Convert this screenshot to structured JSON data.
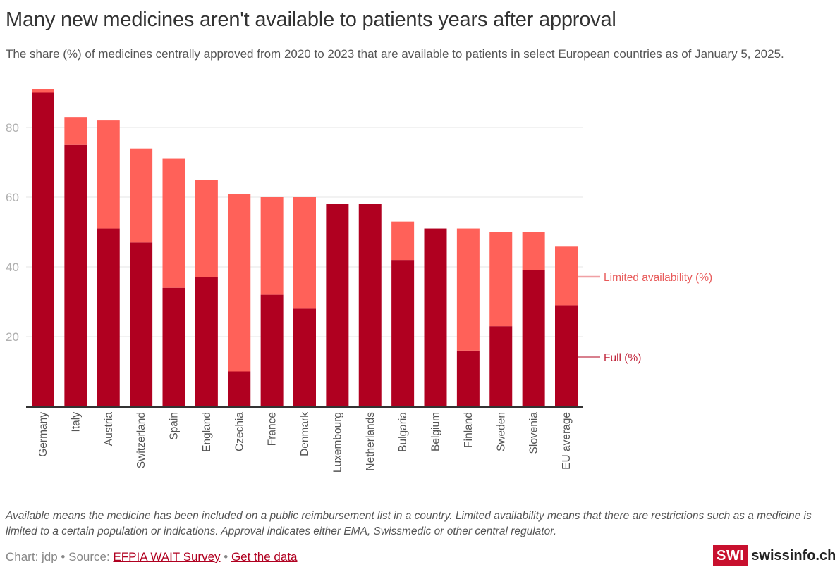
{
  "header": {
    "title": "Many new medicines aren't available to patients years after approval",
    "subtitle": "The share (%) of medicines centrally approved from 2020 to 2023 that are available to patients in select European countries as of January 5, 2025."
  },
  "colors": {
    "full": "#b00020",
    "limited": "#ff6159",
    "grid": "#e6e6e6",
    "axis": "#333333"
  },
  "chart_data": {
    "type": "bar",
    "stacked": true,
    "title": "Many new medicines aren't available to patients years after approval",
    "xlabel": "",
    "ylabel": "",
    "ylim": [
      0,
      91
    ],
    "yticks": [
      20,
      40,
      60,
      80
    ],
    "grid": true,
    "legend_position": "right (direct labels)",
    "categories": [
      "Germany",
      "Italy",
      "Austria",
      "Switzerland",
      "Spain",
      "England",
      "Czechia",
      "France",
      "Denmark",
      "Luxembourg",
      "Netherlands",
      "Bulgaria",
      "Belgium",
      "Finland",
      "Sweden",
      "Slovenia",
      "EU average"
    ],
    "series": [
      {
        "name": "Full (%)",
        "color": "#b00020",
        "values": [
          90,
          75,
          51,
          47,
          34,
          37,
          10,
          32,
          28,
          58,
          58,
          42,
          51,
          16,
          23,
          39,
          29
        ]
      },
      {
        "name": "Limited availability (%)",
        "color": "#ff6159",
        "values": [
          1,
          8,
          31,
          27,
          37,
          28,
          51,
          28,
          32,
          0,
          0,
          11,
          0,
          35,
          27,
          11,
          17
        ]
      }
    ]
  },
  "legend": {
    "limited_label": "Limited availability (%)",
    "full_label": "Full (%)"
  },
  "footer": {
    "notes": "Available means the medicine has been included on a public reimbursement list in a country. Limited availability means that there are restrictions such as a medicine is limited to a certain population or indications. Approval indicates either EMA, Swissmedic or other central regulator.",
    "credit_prefix": "Chart: jdp • Source: ",
    "source_link": "EFPIA WAIT Survey",
    "separator": " • ",
    "data_link": "Get the data",
    "logo_box": "SWI",
    "logo_text": "swissinfo.ch"
  }
}
